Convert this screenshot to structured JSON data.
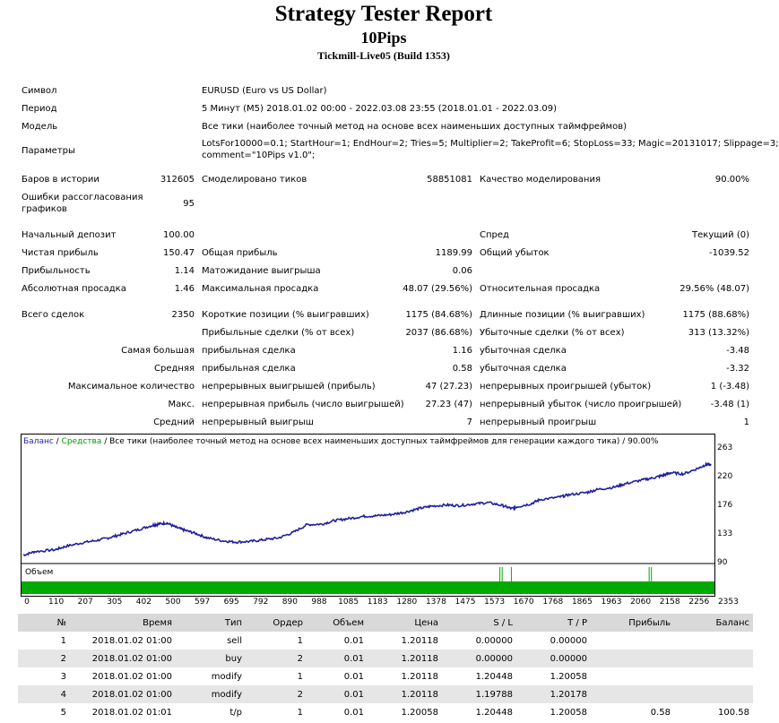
{
  "header": {
    "title": "Strategy Tester Report",
    "ea_name": "10Pips",
    "server": "Tickmill-Live05 (Build 1353)"
  },
  "info": [
    {
      "label": "Символ",
      "value": "EURUSD (Euro vs US Dollar)"
    },
    {
      "label": "Период",
      "value": "5 Минут (M5) 2018.01.02 00:00 - 2022.03.08 23:55 (2018.01.01 - 2022.03.09)"
    },
    {
      "label": "Модель",
      "value": "Все тики (наиболее точный метод на основе всех наименьших доступных таймфреймов)"
    },
    {
      "label": "Параметры",
      "value": "LotsFor10000=0.1; StartHour=1; EndHour=2; Tries=5; Multiplier=2; TakeProfit=6; StopLoss=33; Magic=20131017; Slippage=3;",
      "value2": "comment=\"10Pips v1.0\";"
    }
  ],
  "stats": {
    "bars_label": "Баров в истории",
    "bars_value": "312605",
    "ticks_label": "Смоделировано тиков",
    "ticks_value": "58851081",
    "quality_label": "Качество моделирования",
    "quality_value": "90.00%",
    "errors_label_1": "Ошибки рассогласования",
    "errors_label_2": "графиков",
    "errors_value": "95",
    "deposit_label": "Начальный депозит",
    "deposit_value": "100.00",
    "spread_label": "Спред",
    "spread_value": "Текущий (0)",
    "net_profit_label": "Чистая прибыль",
    "net_profit_value": "150.47",
    "gross_profit_label": "Общая прибыль",
    "gross_profit_value": "1189.99",
    "gross_loss_label": "Общий убыток",
    "gross_loss_value": "-1039.52",
    "profit_factor_label": "Прибыльность",
    "profit_factor_value": "1.14",
    "expected_payoff_label": "Матожидание выигрыша",
    "expected_payoff_value": "0.06",
    "abs_dd_label": "Абсолютная просадка",
    "abs_dd_value": "1.46",
    "max_dd_label": "Максимальная просадка",
    "max_dd_value": "48.07 (29.56%)",
    "rel_dd_label": "Относительная просадка",
    "rel_dd_value": "29.56% (48.07)",
    "total_trades_label": "Всего сделок",
    "total_trades_value": "2350",
    "short_label": "Короткие позиции (% выигравших)",
    "short_value": "1175 (84.68%)",
    "long_label": "Длинные позиции (% выигравших)",
    "long_value": "1175 (88.68%)",
    "profit_trades_label": "Прибыльные сделки (% от всех)",
    "profit_trades_value": "2037 (86.68%)",
    "loss_trades_label": "Убыточные сделки (% от всех)",
    "loss_trades_value": "313 (13.32%)",
    "largest_label": "Самая большая",
    "largest_profit_label": "прибыльная сделка",
    "largest_profit_value": "1.16",
    "largest_loss_label": "убыточная сделка",
    "largest_loss_value": "-3.48",
    "average_label": "Средняя",
    "avg_profit_label": "прибыльная сделка",
    "avg_profit_value": "0.58",
    "avg_loss_label": "убыточная сделка",
    "avg_loss_value": "-3.32",
    "max_count_label": "Максимальное количество",
    "max_consec_wins_label": "непрерывных выигрышей (прибыль)",
    "max_consec_wins_value": "47 (27.23)",
    "max_consec_losses_label": "непрерывных проигрышей (убыток)",
    "max_consec_losses_value": "1 (-3.48)",
    "max_label": "Макс.",
    "max_consec_profit_label": "непрерывная прибыль (число выигрышей)",
    "max_consec_profit_value": "27.23 (47)",
    "max_consec_loss_label": "непрерывный убыток (число проигрышей)",
    "max_consec_loss_value": "-3.48 (1)",
    "avg_consec_label": "Средний",
    "avg_consec_wins_label": "непрерывный выигрыш",
    "avg_consec_wins_value": "7",
    "avg_consec_losses_label": "непрерывный проигрыш",
    "avg_consec_losses_value": "1"
  },
  "chart_legend": {
    "balance": "Баланс",
    "sep1": " / ",
    "equity": "Средства",
    "rest": " / Все тики (наиболее точный метод на основе всех наименьших доступных таймфреймов для генерации каждого тика) / 90.00%",
    "volume": "Объем"
  },
  "colors": {
    "balance": "#1f1fa0",
    "equity": "#009900",
    "volume": "#00aa00"
  },
  "chart_data": {
    "type": "line",
    "ylim": [
      90,
      270
    ],
    "y_ticks": [
      "263",
      "220",
      "176",
      "133",
      "90"
    ],
    "x_ticks": [
      "0",
      "110",
      "207",
      "305",
      "402",
      "500",
      "597",
      "695",
      "792",
      "890",
      "988",
      "1085",
      "1183",
      "1280",
      "1378",
      "1475",
      "1573",
      "1670",
      "1768",
      "1865",
      "1963",
      "2060",
      "2158",
      "2256",
      "2353"
    ],
    "series": [
      {
        "name": "Баланс",
        "x": [
          0,
          40,
          110,
          150,
          207,
          260,
          305,
          350,
          402,
          450,
          470,
          500,
          530,
          560,
          597,
          640,
          695,
          740,
          792,
          840,
          890,
          940,
          988,
          1040,
          1085,
          1130,
          1183,
          1230,
          1280,
          1330,
          1378,
          1420,
          1475,
          1520,
          1573,
          1620,
          1670,
          1700,
          1720,
          1768,
          1800,
          1865,
          1900,
          1963,
          2000,
          2060,
          2100,
          2158,
          2200,
          2230,
          2256,
          2300,
          2353,
          2380,
          2395
        ],
        "y": [
          98,
          104,
          107,
          113,
          119,
          123,
          128,
          134,
          141,
          148,
          150,
          152,
          145,
          140,
          135,
          127,
          122,
          120,
          121,
          124,
          127,
          136,
          149,
          150,
          156,
          159,
          163,
          164,
          166,
          170,
          176,
          180,
          182,
          181,
          184,
          186,
          181,
          176,
          179,
          184,
          191,
          195,
          199,
          203,
          208,
          212,
          218,
          224,
          228,
          232,
          236,
          234,
          244,
          250,
          249
        ]
      }
    ],
    "volume_spikes_x": [
      1660,
      1668,
      1700,
      2180,
      2188
    ]
  },
  "deals_table": {
    "headers": [
      "№",
      "Время",
      "Тип",
      "Ордер",
      "Объем",
      "Цена",
      "S / L",
      "T / P",
      "Прибыль",
      "Баланс"
    ],
    "rows": [
      [
        "1",
        "2018.01.02 01:00",
        "sell",
        "1",
        "0.01",
        "1.20118",
        "0.00000",
        "0.00000",
        "",
        ""
      ],
      [
        "2",
        "2018.01.02 01:00",
        "buy",
        "2",
        "0.01",
        "1.20118",
        "0.00000",
        "0.00000",
        "",
        ""
      ],
      [
        "3",
        "2018.01.02 01:00",
        "modify",
        "1",
        "0.01",
        "1.20118",
        "1.20448",
        "1.20058",
        "",
        ""
      ],
      [
        "4",
        "2018.01.02 01:00",
        "modify",
        "2",
        "0.01",
        "1.20118",
        "1.19788",
        "1.20178",
        "",
        ""
      ],
      [
        "5",
        "2018.01.02 01:01",
        "t/p",
        "1",
        "0.01",
        "1.20058",
        "1.20448",
        "1.20058",
        "0.58",
        "100.58"
      ]
    ]
  }
}
